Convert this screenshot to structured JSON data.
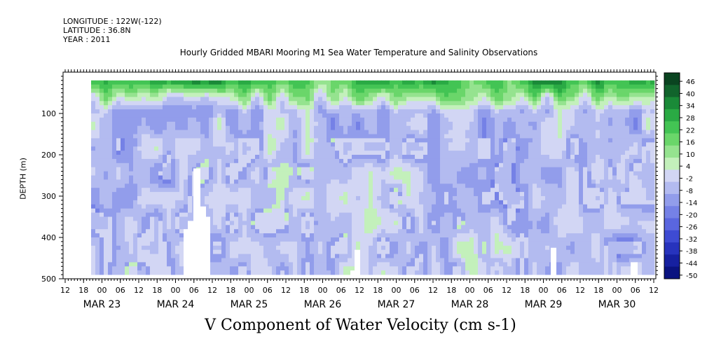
{
  "header": {
    "longitude": "LONGITUDE : 122W(-122)",
    "latitude": "LATITUDE : 36.8N",
    "year": "YEAR : 2011"
  },
  "chart_data": {
    "type": "heatmap",
    "title": "Hourly Gridded MBARI Mooring M1 Sea Water Temperature and Salinity Observations",
    "xlabel": "V Component of Water Velocity (cm s-1)",
    "ylabel": "DEPTH (m)",
    "y_ticks": [
      100,
      200,
      300,
      400,
      500
    ],
    "ylim": [
      500,
      0
    ],
    "x_hour_ticks": [
      "12",
      "18",
      "00",
      "06",
      "12",
      "18",
      "00",
      "06",
      "12",
      "18",
      "00",
      "06",
      "12",
      "18",
      "00",
      "06",
      "12",
      "18",
      "00",
      "06",
      "12",
      "18",
      "00",
      "06",
      "12",
      "18",
      "00",
      "06",
      "12",
      "18",
      "00",
      "06",
      "12"
    ],
    "x_date_labels": [
      "MAR 23",
      "MAR 24",
      "MAR 25",
      "MAR 26",
      "MAR 27",
      "MAR 28",
      "MAR 29",
      "MAR 30"
    ],
    "colorbar_ticks": [
      "46",
      "40",
      "34",
      "28",
      "22",
      "16",
      "10",
      "4",
      "-2",
      "-8",
      "-14",
      "-20",
      "-26",
      "-32",
      "-38",
      "-44",
      "-50"
    ],
    "colorbar_colors": [
      "#0a4420",
      "#11642c",
      "#1a8a38",
      "#2aaa44",
      "#43c454",
      "#6ad66a",
      "#95e38f",
      "#c3f0bb",
      "#d2d6f4",
      "#b3bbf0",
      "#929deb",
      "#7581e6",
      "#5a66df",
      "#3e4bd3",
      "#2733bd",
      "#1620a0",
      "#0a1280"
    ],
    "depth_range": [
      20,
      490
    ],
    "time_range": [
      "MAR 23 18",
      "MAR 30 14"
    ],
    "near_surface": "positive (north, green) in upper ~80 m",
    "deeper_layer": "negative (south, blue) from ~150 to 490 m"
  }
}
